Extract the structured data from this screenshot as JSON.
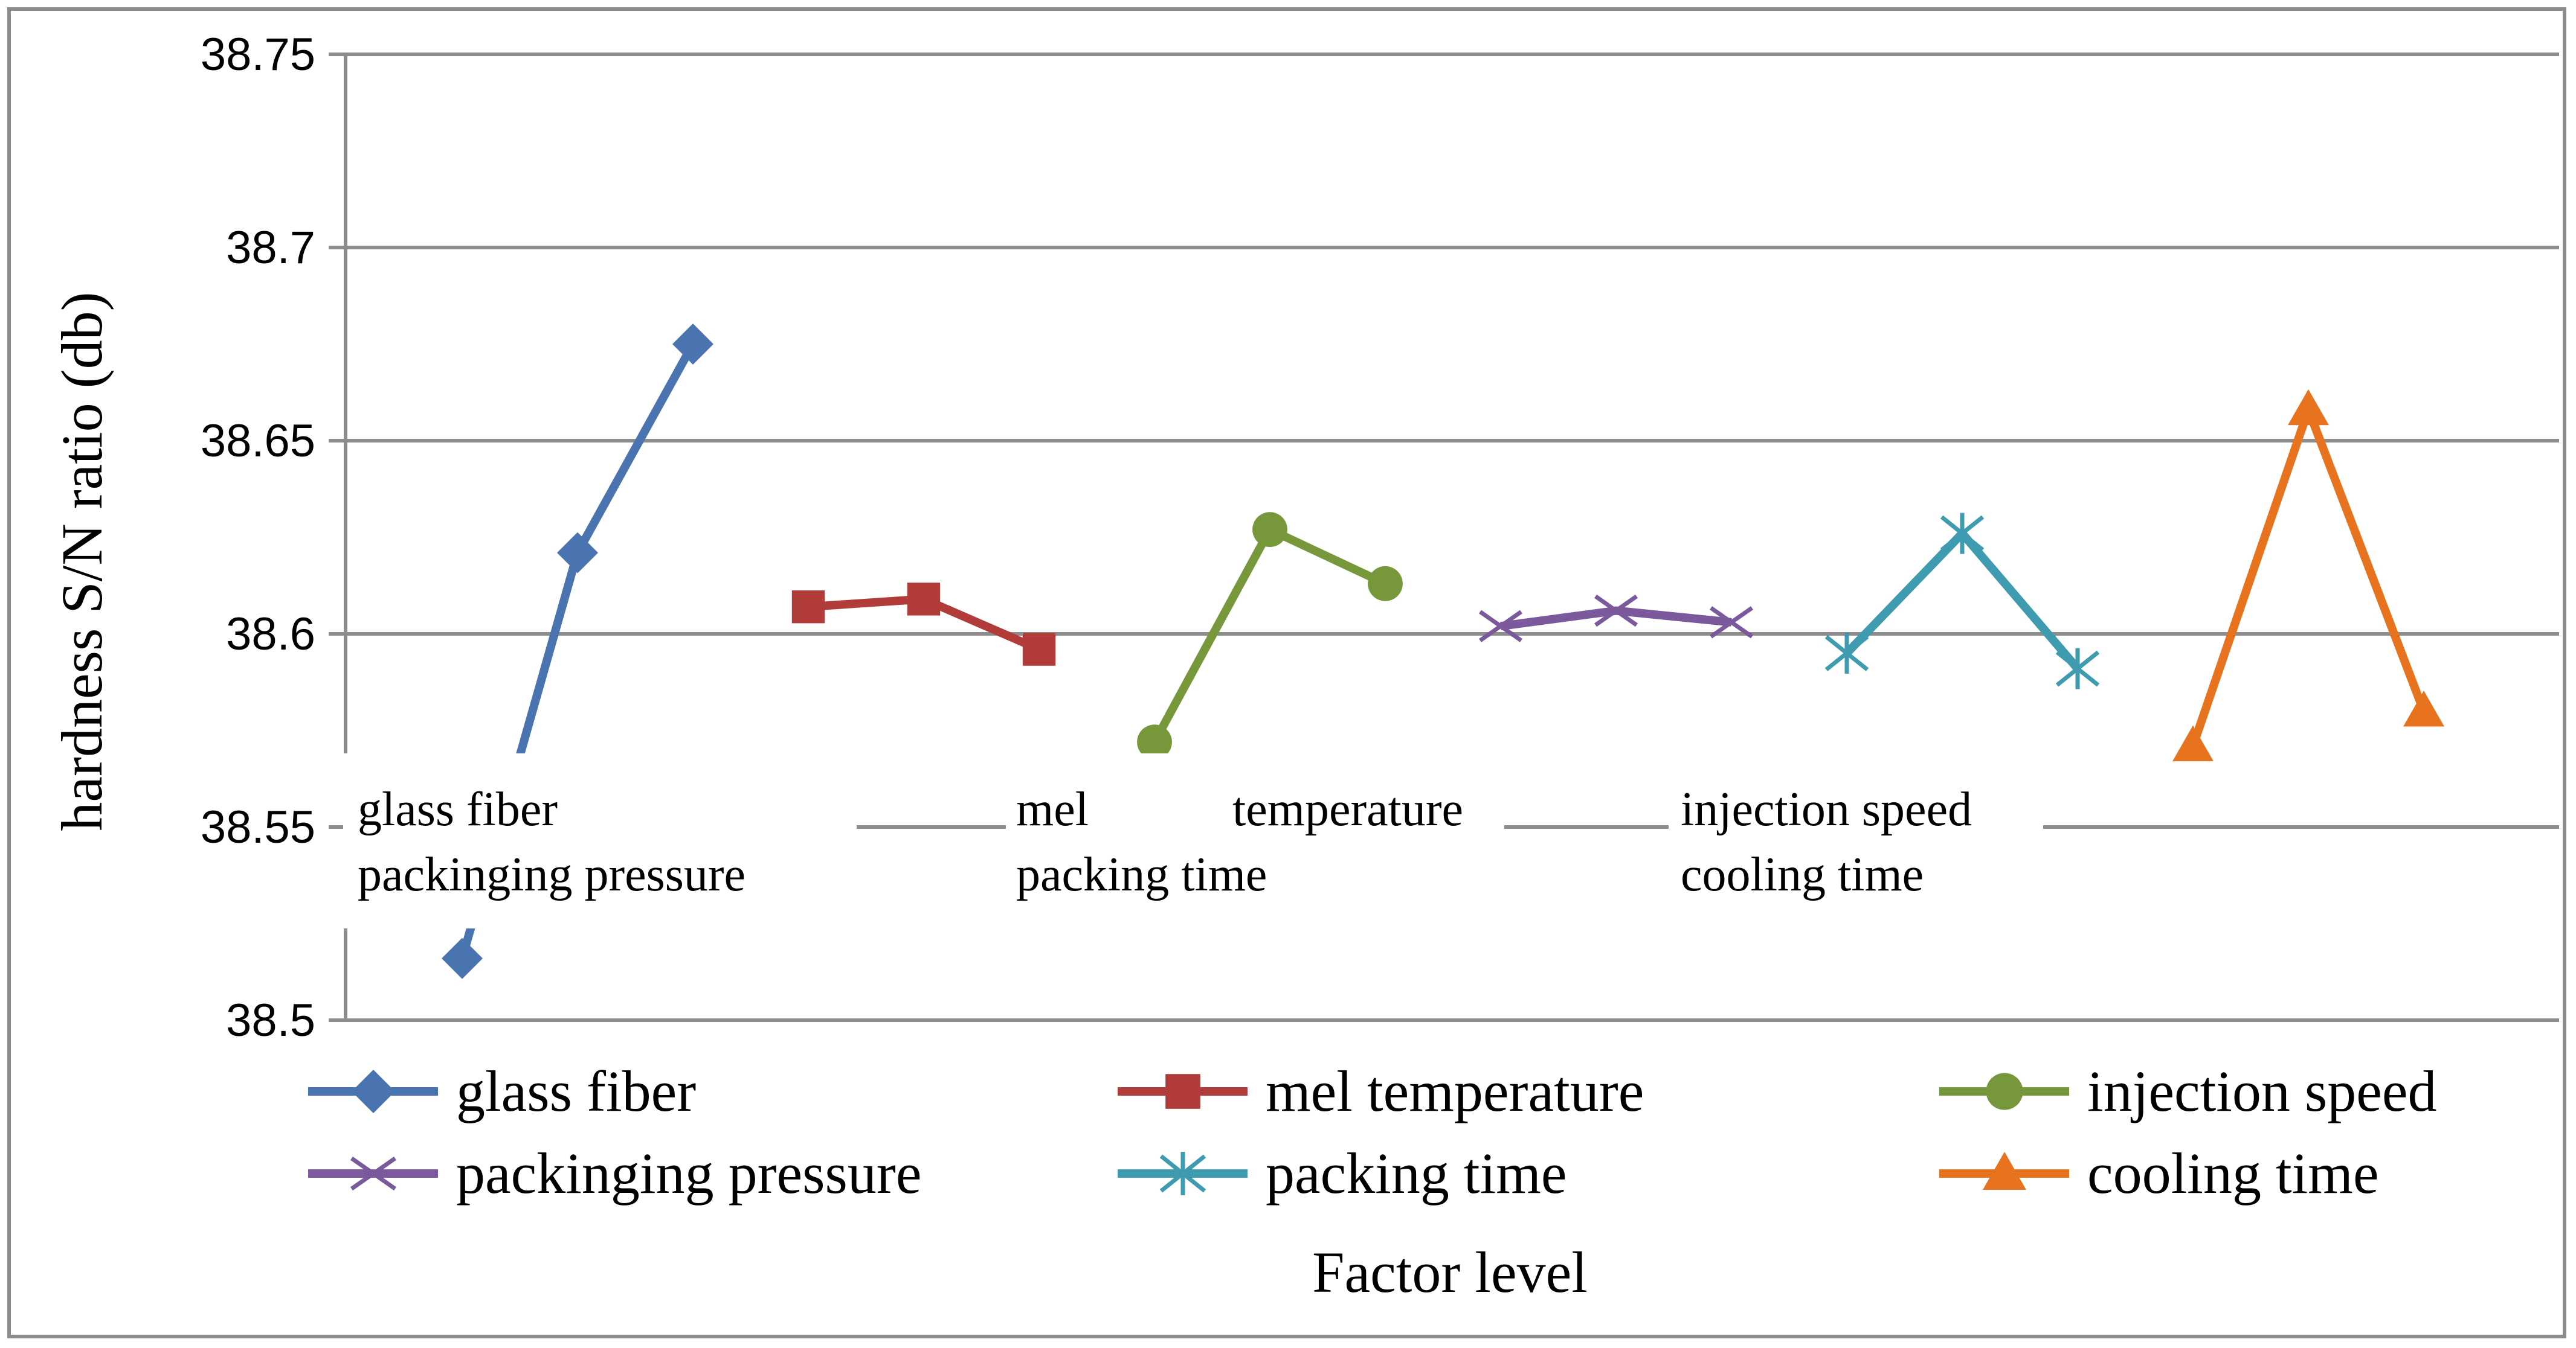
{
  "chart_data": {
    "type": "line",
    "ylabel": "hardness S/N ratio (db)",
    "xlabel": "Factor level",
    "ylim": [
      38.5,
      38.75
    ],
    "yticks": [
      "38.5",
      "38.55",
      "38.6",
      "38.65",
      "38.7",
      "38.75"
    ],
    "grid": true,
    "legend_position": "bottom",
    "series": [
      {
        "name": "glass fiber",
        "values": [
          38.516,
          38.621,
          38.675
        ],
        "color": "#4a74b0",
        "marker": "diamond"
      },
      {
        "name": "mel temperature",
        "values": [
          38.607,
          38.609,
          38.596
        ],
        "color": "#b23c3a",
        "marker": "square"
      },
      {
        "name": "injection speed",
        "values": [
          38.572,
          38.627,
          38.613
        ],
        "color": "#77983a",
        "marker": "circle"
      },
      {
        "name": "packinging pressure",
        "values": [
          38.602,
          38.606,
          38.603
        ],
        "color": "#7a5a9c",
        "marker": "x"
      },
      {
        "name": "packing time",
        "values": [
          38.595,
          38.626,
          38.591
        ],
        "color": "#3f9cb0",
        "marker": "star"
      },
      {
        "name": "cooling time",
        "values": [
          38.571,
          38.658,
          38.58
        ],
        "color": "#e8731f",
        "marker": "triangle"
      }
    ],
    "annotations": [
      {
        "line1": "glass fiber",
        "line2": "packinging pressure"
      },
      {
        "line1": "mel",
        "line2": "packing time"
      },
      {
        "line1": "temperature",
        "line2": ""
      },
      {
        "line1": "injection speed",
        "line2": "cooling time"
      }
    ]
  }
}
